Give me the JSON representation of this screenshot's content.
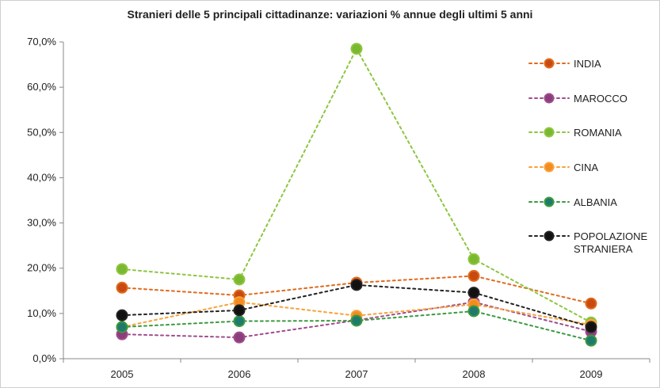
{
  "chart_data": {
    "type": "line",
    "title": "Stranieri delle 5 principali cittadinanze: variazioni % annue degli ultimi 5 anni",
    "categories": [
      "2005",
      "2006",
      "2007",
      "2008",
      "2009"
    ],
    "ylim": [
      0,
      70
    ],
    "y_ticks": [
      "0,0%",
      "10,0%",
      "20,0%",
      "30,0%",
      "40,0%",
      "50,0%",
      "60,0%",
      "70,0%"
    ],
    "grid": false,
    "legend_position": "right",
    "series": [
      {
        "name": "INDIA",
        "color": "#e06a1c",
        "marker": "#c84a10",
        "values": [
          15.7,
          14.0,
          16.8,
          18.3,
          12.2
        ]
      },
      {
        "name": "MAROCCO",
        "color": "#a04c8c",
        "marker": "#8a3e7c",
        "values": [
          5.4,
          4.7,
          8.5,
          12.5,
          6.0
        ]
      },
      {
        "name": "ROMANIA",
        "color": "#8cc63f",
        "marker": "#7ab82f",
        "values": [
          19.8,
          17.5,
          68.5,
          22.0,
          8.0
        ]
      },
      {
        "name": "CINA",
        "color": "#f7a23b",
        "marker": "#f58a1f",
        "values": [
          7.0,
          12.5,
          9.5,
          12.0,
          7.5
        ]
      },
      {
        "name": "ALBANIA",
        "color": "#3a9a3e",
        "marker": "#1f7a6e",
        "values": [
          7.0,
          8.3,
          8.4,
          10.5,
          4.0
        ]
      },
      {
        "name": "POPOLAZIONE STRANIERA",
        "color": "#222222",
        "marker": "#111111",
        "values": [
          9.6,
          10.7,
          16.3,
          14.6,
          7.0
        ]
      }
    ]
  }
}
